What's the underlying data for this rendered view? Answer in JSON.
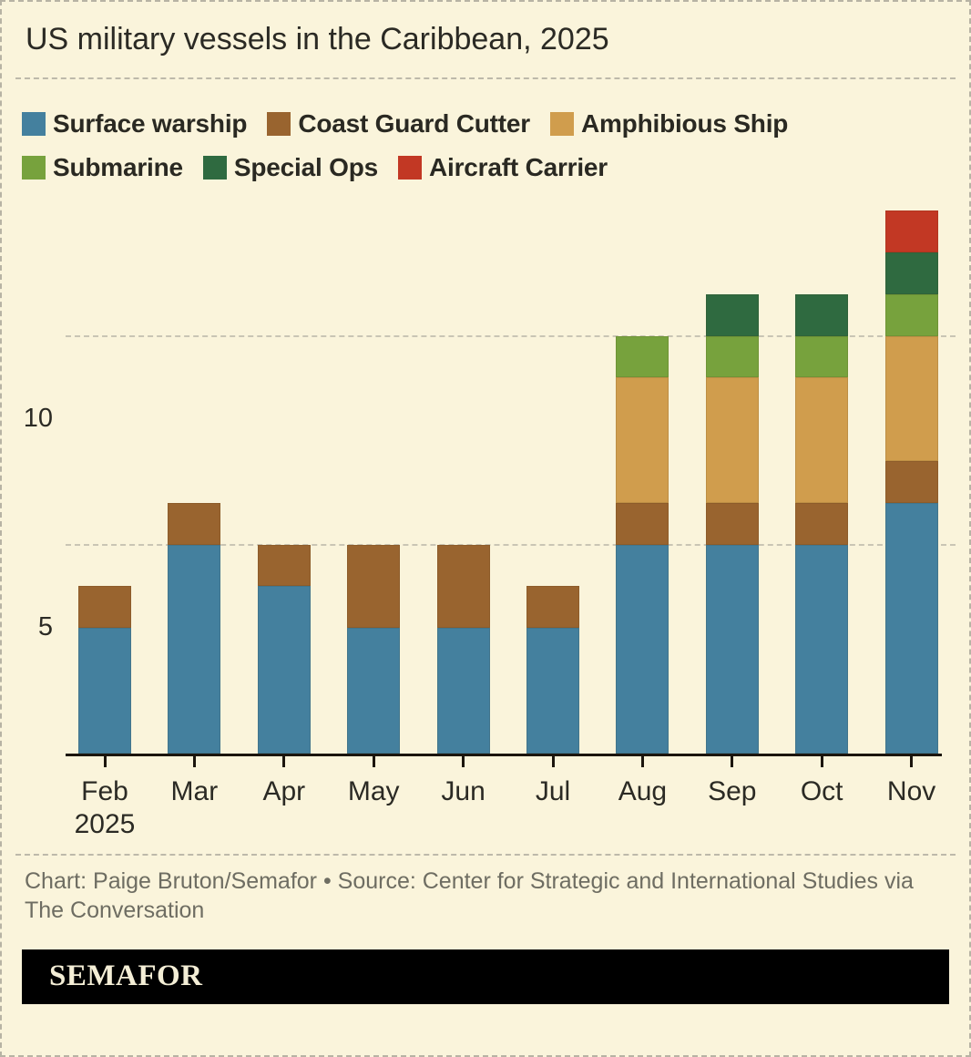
{
  "chart_data": {
    "type": "bar",
    "stacked": true,
    "title": "US military vessels in the Caribbean, 2025",
    "categories": [
      "Feb",
      "Mar",
      "Apr",
      "May",
      "Jun",
      "Jul",
      "Aug",
      "Sep",
      "Oct",
      "Nov"
    ],
    "category_sublabels": [
      "2025",
      "",
      "",
      "",
      "",
      "",
      "",
      "",
      "",
      ""
    ],
    "series": [
      {
        "name": "Surface warship",
        "color": "#44809e",
        "values": [
          3,
          5,
          4,
          3,
          3,
          3,
          5,
          5,
          5,
          6
        ]
      },
      {
        "name": "Coast Guard Cutter",
        "color": "#99642f",
        "values": [
          1,
          1,
          1,
          2,
          2,
          1,
          1,
          1,
          1,
          1
        ]
      },
      {
        "name": "Amphibious Ship",
        "color": "#d09d4d",
        "values": [
          0,
          0,
          0,
          0,
          0,
          0,
          3,
          3,
          3,
          3
        ]
      },
      {
        "name": "Submarine",
        "color": "#77a23d",
        "values": [
          0,
          0,
          0,
          0,
          0,
          0,
          1,
          1,
          1,
          1
        ]
      },
      {
        "name": "Special Ops",
        "color": "#2f6a40",
        "values": [
          0,
          0,
          0,
          0,
          0,
          0,
          0,
          1,
          1,
          1
        ]
      },
      {
        "name": "Aircraft Carrier",
        "color": "#c23824",
        "values": [
          0,
          0,
          0,
          0,
          0,
          0,
          0,
          0,
          0,
          1
        ]
      }
    ],
    "totals": [
      4,
      6,
      5,
      5,
      5,
      4,
      10,
      11,
      11,
      13
    ],
    "yticks": [
      5,
      10
    ],
    "ylim": [
      0,
      13.3
    ],
    "grid": "horizontal-dashed",
    "legend_position": "top-left-two-rows"
  },
  "footer": {
    "credit": "Chart: Paige Bruton/Semafor • Source: Center for Strategic and International Studies via The Conversation",
    "logo_text": "SEMAFOR"
  },
  "colors": {
    "background": "#faf4db",
    "border": "#b7b3a4",
    "axis": "#1b150d",
    "gridline": "#c9c5b4",
    "text": "#2b2a24",
    "muted_text": "#6e6d62",
    "logo_bar": "#000000",
    "logo_text": "#f4eed6"
  }
}
